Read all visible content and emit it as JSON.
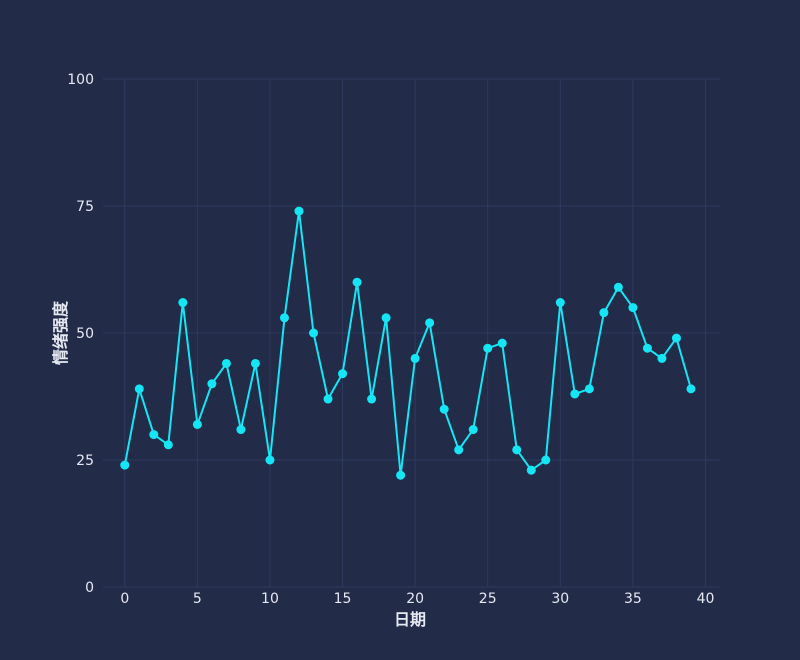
{
  "chart_data": {
    "type": "line",
    "xlabel": "日期",
    "ylabel": "情绪强度",
    "xlim": [
      -1.5,
      41
    ],
    "ylim": [
      0,
      100
    ],
    "xticks": [
      0,
      5,
      10,
      15,
      20,
      25,
      30,
      35,
      40
    ],
    "yticks": [
      0,
      25,
      50,
      75,
      100
    ],
    "grid": true,
    "colors": {
      "line": "#14e6f5",
      "background": "#222b48",
      "grid": "#2f3b5f",
      "text": "#e6e9f2"
    },
    "x": [
      0,
      1,
      2,
      3,
      4,
      5,
      6,
      7,
      8,
      9,
      10,
      11,
      12,
      13,
      14,
      15,
      16,
      17,
      18,
      19,
      20,
      21,
      22,
      23,
      24,
      25,
      26,
      27,
      28,
      29,
      30,
      31,
      32,
      33,
      34,
      35,
      36,
      37,
      38,
      39
    ],
    "values": [
      24,
      39,
      30,
      28,
      56,
      32,
      40,
      44,
      31,
      44,
      25,
      53,
      74,
      50,
      37,
      42,
      60,
      37,
      53,
      22,
      45,
      52,
      35,
      27,
      31,
      47,
      48,
      27,
      23,
      25,
      56,
      38,
      39,
      54,
      59,
      55,
      47,
      45,
      49,
      39
    ]
  }
}
